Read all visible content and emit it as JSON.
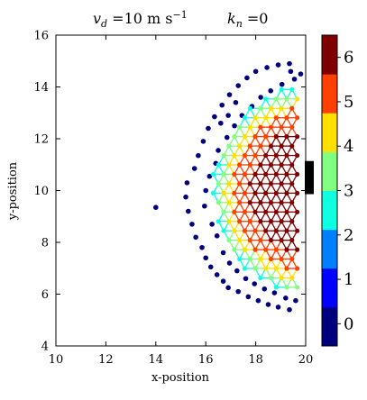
{
  "chart_data": {
    "type": "scatter",
    "title_left": "v_d =10 m s^{-1}",
    "title_left_parts": {
      "symbol": "v",
      "subscript": "d",
      "rest": " =10 m s",
      "superscript": "−1"
    },
    "title_right_parts": {
      "symbol": "k",
      "subscript": "n",
      "rest": " =0"
    },
    "xlabel": "x-position",
    "ylabel": "y-position",
    "xlim": [
      10,
      20
    ],
    "ylim": [
      4,
      16
    ],
    "xticks": [
      "10",
      "12",
      "14",
      "16",
      "18",
      "20"
    ],
    "yticks": [
      "4",
      "6",
      "8",
      "10",
      "12",
      "14",
      "16"
    ],
    "colorbar": {
      "ticks": [
        "0",
        "1",
        "2",
        "3",
        "4",
        "5",
        "6"
      ],
      "colors": [
        "#00007f",
        "#0000ff",
        "#0080ff",
        "#10ffe0",
        "#80ff80",
        "#ffe000",
        "#ff4000",
        "#7f0000"
      ],
      "range": [
        -0.5,
        6.5
      ]
    },
    "exit": {
      "x": 20,
      "y_range": [
        10,
        11
      ]
    },
    "outer_points": [
      [
        14.0,
        9.35
      ],
      [
        15.2,
        9.75
      ],
      [
        15.25,
        10.3
      ],
      [
        15.3,
        9.2
      ],
      [
        15.45,
        8.7
      ],
      [
        15.55,
        10.85
      ],
      [
        15.6,
        8.2
      ],
      [
        15.7,
        11.35
      ],
      [
        15.85,
        7.8
      ],
      [
        15.9,
        11.9
      ],
      [
        16.0,
        7.4
      ],
      [
        16.1,
        12.4
      ],
      [
        16.2,
        7.05
      ],
      [
        16.35,
        12.85
      ],
      [
        16.45,
        6.75
      ],
      [
        16.65,
        13.3
      ],
      [
        16.7,
        6.5
      ],
      [
        16.95,
        13.7
      ],
      [
        16.9,
        6.25
      ],
      [
        17.3,
        14.05
      ],
      [
        17.3,
        6.1
      ],
      [
        17.65,
        14.35
      ],
      [
        17.7,
        5.9
      ],
      [
        18.0,
        14.6
      ],
      [
        18.1,
        5.75
      ],
      [
        18.45,
        14.75
      ],
      [
        18.5,
        5.6
      ],
      [
        18.9,
        14.85
      ],
      [
        18.9,
        5.5
      ],
      [
        19.35,
        14.9
      ],
      [
        19.35,
        5.4
      ],
      [
        16.0,
        10.0
      ],
      [
        15.95,
        9.4
      ],
      [
        16.15,
        10.55
      ],
      [
        16.25,
        8.7
      ],
      [
        16.4,
        11.05
      ],
      [
        16.45,
        8.25
      ],
      [
        16.5,
        11.55
      ],
      [
        16.7,
        7.6
      ],
      [
        16.85,
        12.05
      ],
      [
        16.95,
        7.2
      ],
      [
        17.15,
        12.5
      ],
      [
        17.25,
        6.9
      ],
      [
        17.45,
        12.9
      ],
      [
        17.6,
        6.6
      ],
      [
        17.85,
        13.25
      ],
      [
        17.95,
        6.4
      ],
      [
        18.2,
        13.6
      ],
      [
        18.35,
        6.2
      ],
      [
        18.6,
        13.85
      ],
      [
        18.75,
        6.05
      ],
      [
        19.05,
        14.1
      ],
      [
        19.2,
        5.85
      ],
      [
        19.55,
        14.3
      ],
      [
        19.6,
        5.75
      ],
      [
        17.2,
        13.4
      ],
      [
        16.9,
        12.9
      ],
      [
        16.6,
        12.6
      ],
      [
        19.4,
        14.6
      ],
      [
        19.8,
        14.5
      ]
    ],
    "grid": {
      "origin": [
        16.3,
        9.9
      ],
      "spacing": 0.42,
      "center": [
        20.0,
        10.0
      ],
      "max_radius": 3.75,
      "min_x": 16.3,
      "max_x": 19.85,
      "clip_y": [
        5.95,
        14.6
      ]
    },
    "level_rings": [
      {
        "r": 3.55,
        "level": 2
      },
      {
        "r": 3.3,
        "level": 3
      },
      {
        "r": 3.0,
        "level": 4
      },
      {
        "r": 2.3,
        "level": 5
      },
      {
        "r": 0.0,
        "level": 6
      }
    ]
  }
}
